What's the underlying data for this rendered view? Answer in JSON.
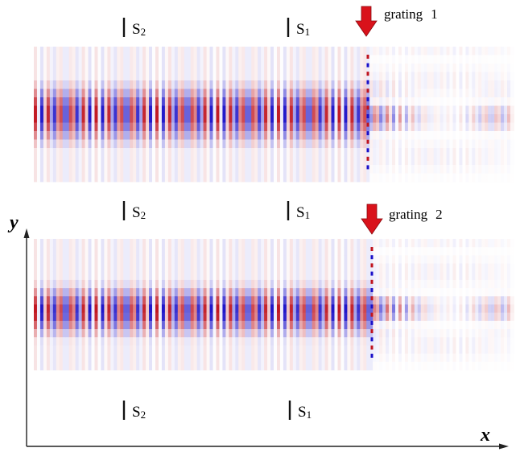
{
  "panels": [
    {
      "id": "top",
      "grating_label": "grating",
      "grating_number": "1",
      "grating_lines": 1
    },
    {
      "id": "bottom",
      "grating_label": "grating",
      "grating_number": "2",
      "grating_lines": 1
    }
  ],
  "sections": [
    {
      "letter": "S",
      "subscript": "2"
    },
    {
      "letter": "S",
      "subscript": "1"
    }
  ],
  "axes": {
    "x_label": "x",
    "y_label": "y"
  },
  "colors": {
    "positive": "#c0141e",
    "negative": "#1a10c8",
    "arrow": "#d9121b",
    "axis": "#222222"
  }
}
